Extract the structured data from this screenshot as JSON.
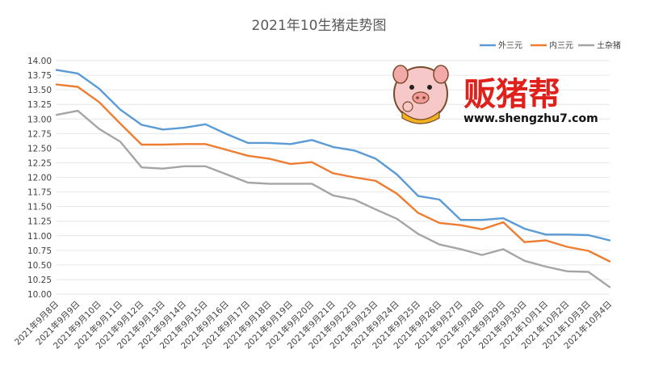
{
  "chart_data": {
    "type": "line",
    "title": "2021年10生猪走势图",
    "xlabel": "",
    "ylabel": "",
    "ylim": [
      10.0,
      14.0
    ],
    "ytick_step": 0.25,
    "grid": true,
    "legend_position": "top-right",
    "categories": [
      "2021年9月8日",
      "2021年9月9日",
      "2021年9月10日",
      "2021年9月11日",
      "2021年9月12日",
      "2021年9月13日",
      "2021年9月14日",
      "2021年9月15日",
      "2021年9月16日",
      "2021年9月17日",
      "2021年9月18日",
      "2021年9月19日",
      "2021年9月20日",
      "2021年9月21日",
      "2021年9月22日",
      "2021年9月23日",
      "2021年9月24日",
      "2021年9月25日",
      "2021年9月26日",
      "2021年9月27日",
      "2021年9月28日",
      "2021年9月29日",
      "2021年9月30日",
      "2021年10月1日",
      "2021年10月2日",
      "2021年10月3日",
      "2021年10月4日"
    ],
    "series": [
      {
        "name": "外三元",
        "color": "#5b9bd5",
        "values": [
          13.84,
          13.78,
          13.52,
          13.16,
          12.9,
          12.82,
          12.85,
          12.91,
          12.74,
          12.59,
          12.59,
          12.57,
          12.64,
          12.52,
          12.46,
          12.32,
          12.05,
          11.68,
          11.62,
          11.27,
          11.27,
          11.3,
          11.12,
          11.02,
          11.02,
          11.01,
          10.92
        ]
      },
      {
        "name": "内三元",
        "color": "#ed7d31",
        "values": [
          13.59,
          13.55,
          13.29,
          12.92,
          12.56,
          12.56,
          12.57,
          12.57,
          12.47,
          12.37,
          12.32,
          12.23,
          12.26,
          12.07,
          12.0,
          11.94,
          11.72,
          11.39,
          11.22,
          11.18,
          11.11,
          11.23,
          10.89,
          10.92,
          10.81,
          10.74,
          10.56
        ]
      },
      {
        "name": "土杂猪",
        "color": "#a5a5a5",
        "values": [
          13.07,
          13.14,
          12.83,
          12.61,
          12.17,
          12.15,
          12.19,
          12.19,
          12.05,
          11.91,
          11.89,
          11.89,
          11.89,
          11.69,
          11.62,
          11.45,
          11.29,
          11.03,
          10.85,
          10.77,
          10.67,
          10.77,
          10.57,
          10.47,
          10.39,
          10.38,
          10.12
        ]
      }
    ]
  },
  "watermark": {
    "brand": "贩猪帮",
    "url": "www.shengzhu7.com"
  }
}
